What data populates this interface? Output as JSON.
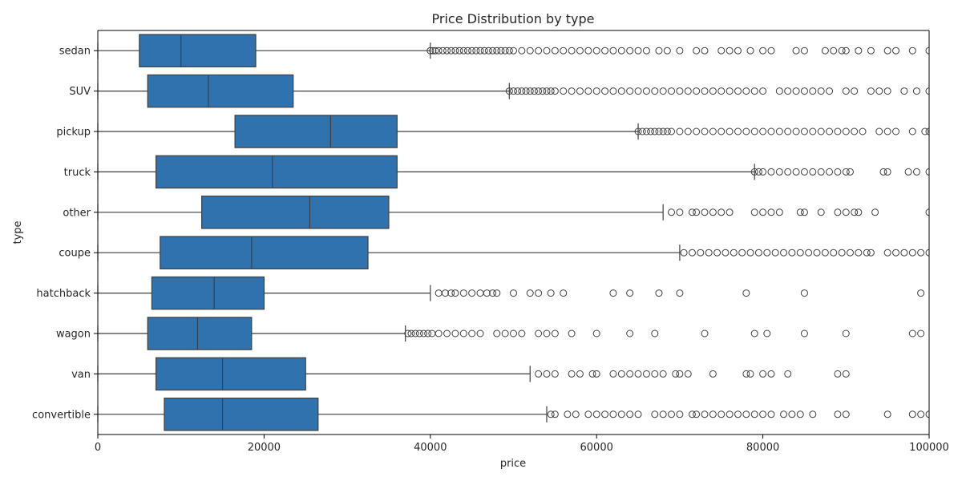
{
  "chart_data": {
    "type": "box",
    "orientation": "horizontal",
    "title": "Price Distribution by type",
    "xlabel": "price",
    "ylabel": "type",
    "xlim": [
      0,
      100000
    ],
    "xticks": [
      0,
      20000,
      40000,
      60000,
      80000,
      100000
    ],
    "xtick_labels": [
      "0",
      "20000",
      "40000",
      "60000",
      "80000",
      "100000"
    ],
    "grid": false,
    "color": "#2f72ad",
    "categories": [
      "sedan",
      "SUV",
      "pickup",
      "truck",
      "other",
      "coupe",
      "hatchback",
      "wagon",
      "van",
      "convertible"
    ],
    "boxes": [
      {
        "category": "sedan",
        "whisker_low": 0,
        "q1": 5000,
        "median": 10000,
        "q3": 19000,
        "whisker_high": 40000,
        "outliers": [
          40000,
          40300,
          40600,
          41000,
          41500,
          42000,
          42500,
          43000,
          43500,
          44000,
          44500,
          45000,
          45500,
          46000,
          46500,
          47000,
          47500,
          48000,
          48500,
          49000,
          49500,
          50000,
          51000,
          52000,
          53000,
          54000,
          55000,
          56000,
          57000,
          58000,
          59000,
          60000,
          61000,
          62000,
          63000,
          64000,
          65000,
          66000,
          67500,
          68500,
          70000,
          72000,
          73000,
          75000,
          76000,
          77000,
          78500,
          80000,
          81000,
          84000,
          85000,
          87500,
          88500,
          89500,
          90000,
          91500,
          93000,
          95000,
          96000,
          98000,
          100000
        ]
      },
      {
        "category": "SUV",
        "whisker_low": 0,
        "q1": 6000,
        "median": 13300,
        "q3": 23500,
        "whisker_high": 49500,
        "outliers": [
          49500,
          50000,
          50500,
          51000,
          51500,
          52000,
          52500,
          53000,
          53500,
          54000,
          54500,
          55000,
          56000,
          57000,
          58000,
          59000,
          60000,
          61000,
          62000,
          63000,
          64000,
          65000,
          66000,
          67000,
          68000,
          69000,
          70000,
          71000,
          72000,
          73000,
          74000,
          75000,
          76000,
          77000,
          78000,
          79000,
          80000,
          82000,
          83000,
          84000,
          85000,
          86000,
          87000,
          88000,
          90000,
          91000,
          93000,
          94000,
          95000,
          97000,
          98500,
          100000
        ]
      },
      {
        "category": "pickup",
        "whisker_low": 0,
        "q1": 16500,
        "median": 28000,
        "q3": 36000,
        "whisker_high": 65000,
        "outliers": [
          65000,
          65500,
          66000,
          66500,
          67000,
          67500,
          68000,
          68500,
          69000,
          70000,
          71000,
          72000,
          73000,
          74000,
          75000,
          76000,
          77000,
          78000,
          79000,
          80000,
          81000,
          82000,
          83000,
          84000,
          85000,
          86000,
          87000,
          88000,
          89000,
          90000,
          91000,
          92000,
          94000,
          95000,
          96000,
          98000,
          99500,
          100000
        ]
      },
      {
        "category": "truck",
        "whisker_low": 0,
        "q1": 7000,
        "median": 21000,
        "q3": 36000,
        "whisker_high": 79000,
        "outliers": [
          79000,
          79500,
          80000,
          81000,
          82000,
          83000,
          84000,
          85000,
          86000,
          87000,
          88000,
          89000,
          90000,
          90500,
          94500,
          95000,
          97500,
          98500,
          100000
        ]
      },
      {
        "category": "other",
        "whisker_low": 0,
        "q1": 12500,
        "median": 25500,
        "q3": 35000,
        "whisker_high": 68000,
        "outliers": [
          69000,
          70000,
          71500,
          72000,
          73000,
          74000,
          75000,
          76000,
          79000,
          80000,
          81000,
          82000,
          84500,
          85000,
          87000,
          89000,
          90000,
          91000,
          91500,
          93500,
          100000
        ]
      },
      {
        "category": "coupe",
        "whisker_low": 0,
        "q1": 7500,
        "median": 18500,
        "q3": 32500,
        "whisker_high": 70000,
        "outliers": [
          70500,
          71500,
          72500,
          73500,
          74500,
          75500,
          76500,
          77500,
          78500,
          79500,
          80500,
          81500,
          82500,
          83500,
          84500,
          85500,
          86500,
          87500,
          88500,
          89500,
          90500,
          91500,
          92500,
          93000,
          95000,
          96000,
          97000,
          98000,
          99000,
          100000
        ]
      },
      {
        "category": "hatchback",
        "whisker_low": 0,
        "q1": 6500,
        "median": 14000,
        "q3": 20000,
        "whisker_high": 40000,
        "outliers": [
          41000,
          41800,
          42500,
          43000,
          44000,
          45000,
          46000,
          46800,
          47500,
          48000,
          50000,
          52000,
          53000,
          54500,
          56000,
          62000,
          64000,
          67500,
          70000,
          78000,
          85000,
          99000
        ]
      },
      {
        "category": "wagon",
        "whisker_low": 0,
        "q1": 6000,
        "median": 12000,
        "q3": 18500,
        "whisker_high": 37000,
        "outliers": [
          37300,
          37700,
          38200,
          38700,
          39200,
          39700,
          40200,
          41000,
          42000,
          43000,
          44000,
          45000,
          46000,
          48000,
          49000,
          50000,
          51000,
          53000,
          54000,
          55000,
          57000,
          60000,
          64000,
          67000,
          73000,
          79000,
          80500,
          85000,
          90000,
          98000,
          99000
        ]
      },
      {
        "category": "van",
        "whisker_low": 0,
        "q1": 7000,
        "median": 15000,
        "q3": 25000,
        "whisker_high": 52000,
        "outliers": [
          53000,
          54000,
          55000,
          57000,
          58000,
          59500,
          60000,
          62000,
          63000,
          64000,
          65000,
          66000,
          67000,
          68000,
          69500,
          70000,
          71000,
          74000,
          78000,
          78500,
          80000,
          81000,
          83000,
          89000,
          90000
        ]
      },
      {
        "category": "convertible",
        "whisker_low": 0,
        "q1": 8000,
        "median": 15000,
        "q3": 26500,
        "whisker_high": 54000,
        "outliers": [
          54500,
          55000,
          56500,
          57500,
          59000,
          60000,
          61000,
          62000,
          63000,
          64000,
          65000,
          67000,
          68000,
          69000,
          70000,
          71500,
          72000,
          73000,
          74000,
          75000,
          76000,
          77000,
          78000,
          79000,
          80000,
          81000,
          82500,
          83500,
          84500,
          86000,
          89000,
          90000,
          95000,
          98000,
          99000,
          100000
        ]
      }
    ]
  }
}
